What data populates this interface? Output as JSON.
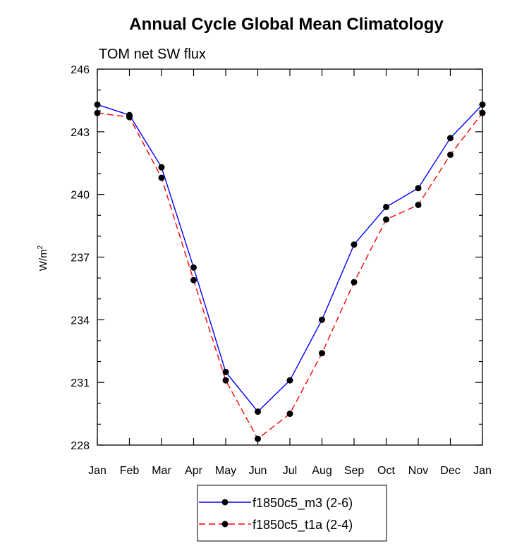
{
  "chart_data": {
    "type": "line",
    "title": "Annual Cycle Global Mean Climatology",
    "subtitle": "TOM net SW flux",
    "ylabel": "W/m",
    "ylabel_sup": "2",
    "xlabel": "",
    "ylim": [
      228,
      246
    ],
    "yticks": [
      228,
      231,
      234,
      237,
      240,
      243,
      246
    ],
    "ytick_labels": [
      "228",
      "231",
      "234",
      "237",
      "240",
      "243",
      "246"
    ],
    "yminor_step": 1,
    "categories": [
      "Jan",
      "Feb",
      "Mar",
      "Apr",
      "May",
      "Jun",
      "Jul",
      "Aug",
      "Sep",
      "Oct",
      "Nov",
      "Dec",
      "Jan"
    ],
    "series": [
      {
        "name": "f1850c5_m3 (2-6)",
        "color": "#0000ff",
        "dash": "solid",
        "values": [
          244.3,
          243.8,
          241.3,
          236.5,
          231.5,
          229.6,
          231.1,
          234.0,
          237.6,
          239.4,
          240.3,
          242.7,
          244.3
        ]
      },
      {
        "name": "f1850c5_t1a (2-4)",
        "color": "#ff0000",
        "dash": "dashed",
        "values": [
          243.9,
          243.7,
          240.8,
          235.9,
          231.1,
          228.3,
          229.5,
          232.4,
          235.8,
          238.8,
          239.5,
          241.9,
          243.9
        ]
      }
    ],
    "marker_color": "#000000",
    "legend_position": "bottom-center",
    "grid": false
  }
}
